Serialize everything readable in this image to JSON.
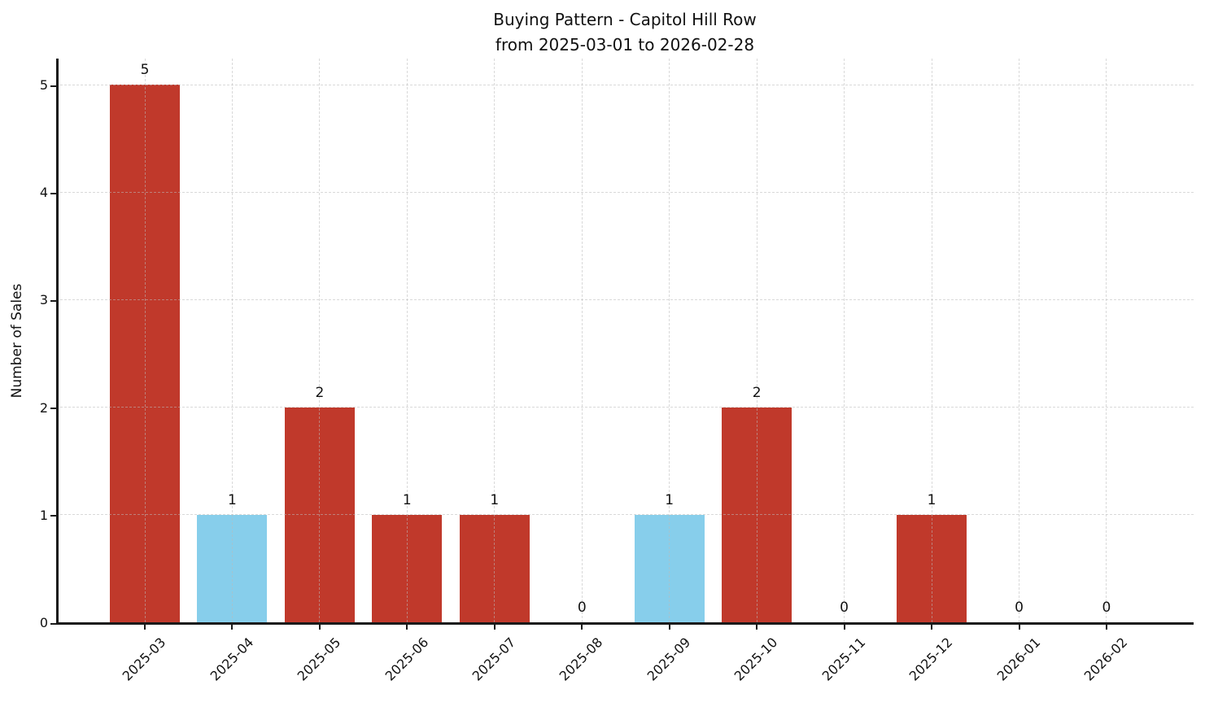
{
  "chart_data": {
    "type": "bar",
    "title": "Buying Pattern - Capitol Hill Row",
    "subtitle": "from 2025-03-01 to 2026-02-28",
    "xlabel": "",
    "ylabel": "Number of Sales",
    "categories": [
      "2025-03",
      "2025-04",
      "2025-05",
      "2025-06",
      "2025-07",
      "2025-08",
      "2025-09",
      "2025-10",
      "2025-11",
      "2025-12",
      "2026-01",
      "2026-02"
    ],
    "values": [
      5,
      1,
      2,
      1,
      1,
      0,
      1,
      2,
      0,
      1,
      0,
      0
    ],
    "bar_color_names": [
      "brick-red",
      "sky-blue",
      "brick-red",
      "brick-red",
      "brick-red",
      "brick-red",
      "sky-blue",
      "brick-red",
      "brick-red",
      "brick-red",
      "brick-red",
      "brick-red"
    ],
    "palette": {
      "brick-red": "#c0392b",
      "sky-blue": "#87ceeb"
    },
    "value_labels": [
      "5",
      "1",
      "2",
      "1",
      "1",
      "0",
      "1",
      "2",
      "0",
      "1",
      "0",
      "0"
    ],
    "yticks": [
      0,
      1,
      2,
      3,
      4,
      5
    ],
    "ylim": [
      0,
      5.25
    ],
    "grid": true,
    "grid_style": "dashed",
    "legend_position": "none",
    "axis_color": "#1a1a1a",
    "text_color": "#111111"
  }
}
